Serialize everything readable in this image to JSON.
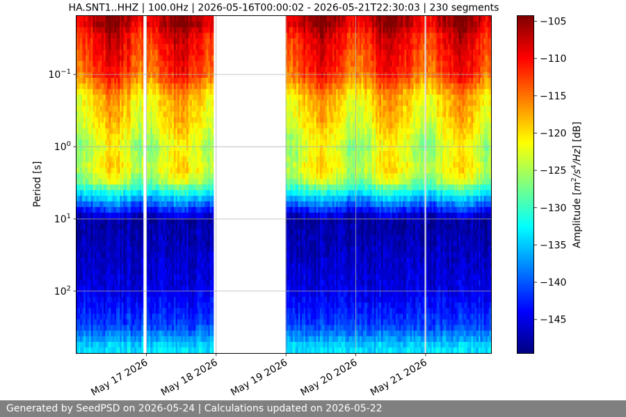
{
  "chart_data": {
    "type": "heatmap",
    "title": "HA.SNT1..HHZ | 100.0Hz | 2026-05-16T00:00:02 - 2026-05-21T22:30:03 | 230 segments",
    "ylabel": "Period [s]",
    "colorbar_label": "Amplitude [m$^2$/s$^4$/Hz] [dB]",
    "colorbar_label_parts": [
      "Amplitude [",
      "m",
      "2",
      "/s",
      "4",
      "/Hz",
      "] [dB]"
    ],
    "colormap": "jet",
    "x_range": [
      "2026-05-16T00:00:02",
      "2026-05-21T22:30:03"
    ],
    "x_ticks": [
      "May 17 2026",
      "May 18 2026",
      "May 19 2026",
      "May 20 2026",
      "May 21 2026"
    ],
    "y_scale": "log",
    "y_inverted": true,
    "y_ticks": [
      {
        "value": 0.1,
        "base": "10",
        "exp": "−1"
      },
      {
        "value": 1,
        "base": "10",
        "exp": "0"
      },
      {
        "value": 10,
        "base": "10",
        "exp": "1"
      },
      {
        "value": 100,
        "base": "10",
        "exp": "2"
      }
    ],
    "colorbar_range": [
      -149.5,
      -104.3
    ],
    "colorbar_ticks": [
      "−105",
      "−110",
      "−115",
      "−120",
      "−125",
      "−130",
      "−135",
      "−140",
      "−145"
    ],
    "grid": true,
    "segments": 230,
    "data_gaps": [
      {
        "start": "2026-05-16T23:00",
        "end": "2026-05-17T00:00"
      },
      {
        "start": "2026-05-17T23:00",
        "end": "2026-05-19T00:00"
      },
      {
        "start": "2026-05-19T23:50",
        "end": "2026-05-20T00:10"
      },
      {
        "start": "2026-05-20T23:50",
        "end": "2026-05-21T00:10"
      }
    ],
    "psd_profile_db": [
      {
        "period": 0.02,
        "db": -107
      },
      {
        "period": 0.03,
        "db": -110
      },
      {
        "period": 0.1,
        "db": -113
      },
      {
        "period": 0.2,
        "db": -119
      },
      {
        "period": 0.5,
        "db": -121
      },
      {
        "period": 1,
        "db": -124
      },
      {
        "period": 2,
        "db": -122
      },
      {
        "period": 3,
        "db": -125
      },
      {
        "period": 5,
        "db": -135
      },
      {
        "period": 7,
        "db": -141
      },
      {
        "period": 10,
        "db": -148
      },
      {
        "period": 100,
        "db": -145
      },
      {
        "period": 300,
        "db": -141
      },
      {
        "period": 600,
        "db": -134
      }
    ]
  },
  "footer": {
    "text": "Generated by SeedPSD on 2026-05-24 | Calculations updated on 2026-05-22"
  }
}
